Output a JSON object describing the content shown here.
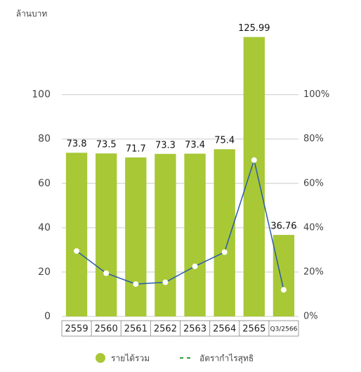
{
  "chart_data": {
    "type": "bar-line",
    "y_label": "ล้านบาท",
    "categories": [
      "2559",
      "2560",
      "2561",
      "2562",
      "2563",
      "2564",
      "2565",
      "Q3/2566"
    ],
    "series": [
      {
        "name": "รายได้รวม",
        "type": "bar",
        "color": "#a8c836",
        "values": [
          73.8,
          73.5,
          71.7,
          73.3,
          73.4,
          75.4,
          125.99,
          36.76
        ]
      },
      {
        "name": "อัตรากำไรสุทธิ",
        "type": "line",
        "axis": "y2",
        "color": "#2a5ca8",
        "values": [
          29.5,
          19.5,
          14.6,
          15.4,
          22.6,
          29,
          70.5,
          12
        ]
      }
    ],
    "ylim": [
      0,
      130
    ],
    "yticks": [
      0,
      20,
      40,
      60,
      80,
      100
    ],
    "y2lim": [
      0,
      130
    ],
    "y2ticks": [
      {
        "value": 0,
        "label": "0%"
      },
      {
        "value": 20,
        "label": "20%"
      },
      {
        "value": 40,
        "label": "40%"
      },
      {
        "value": 60,
        "label": "60%"
      },
      {
        "value": 80,
        "label": "80%"
      },
      {
        "value": 100,
        "label": "100%"
      }
    ],
    "grid": true
  }
}
